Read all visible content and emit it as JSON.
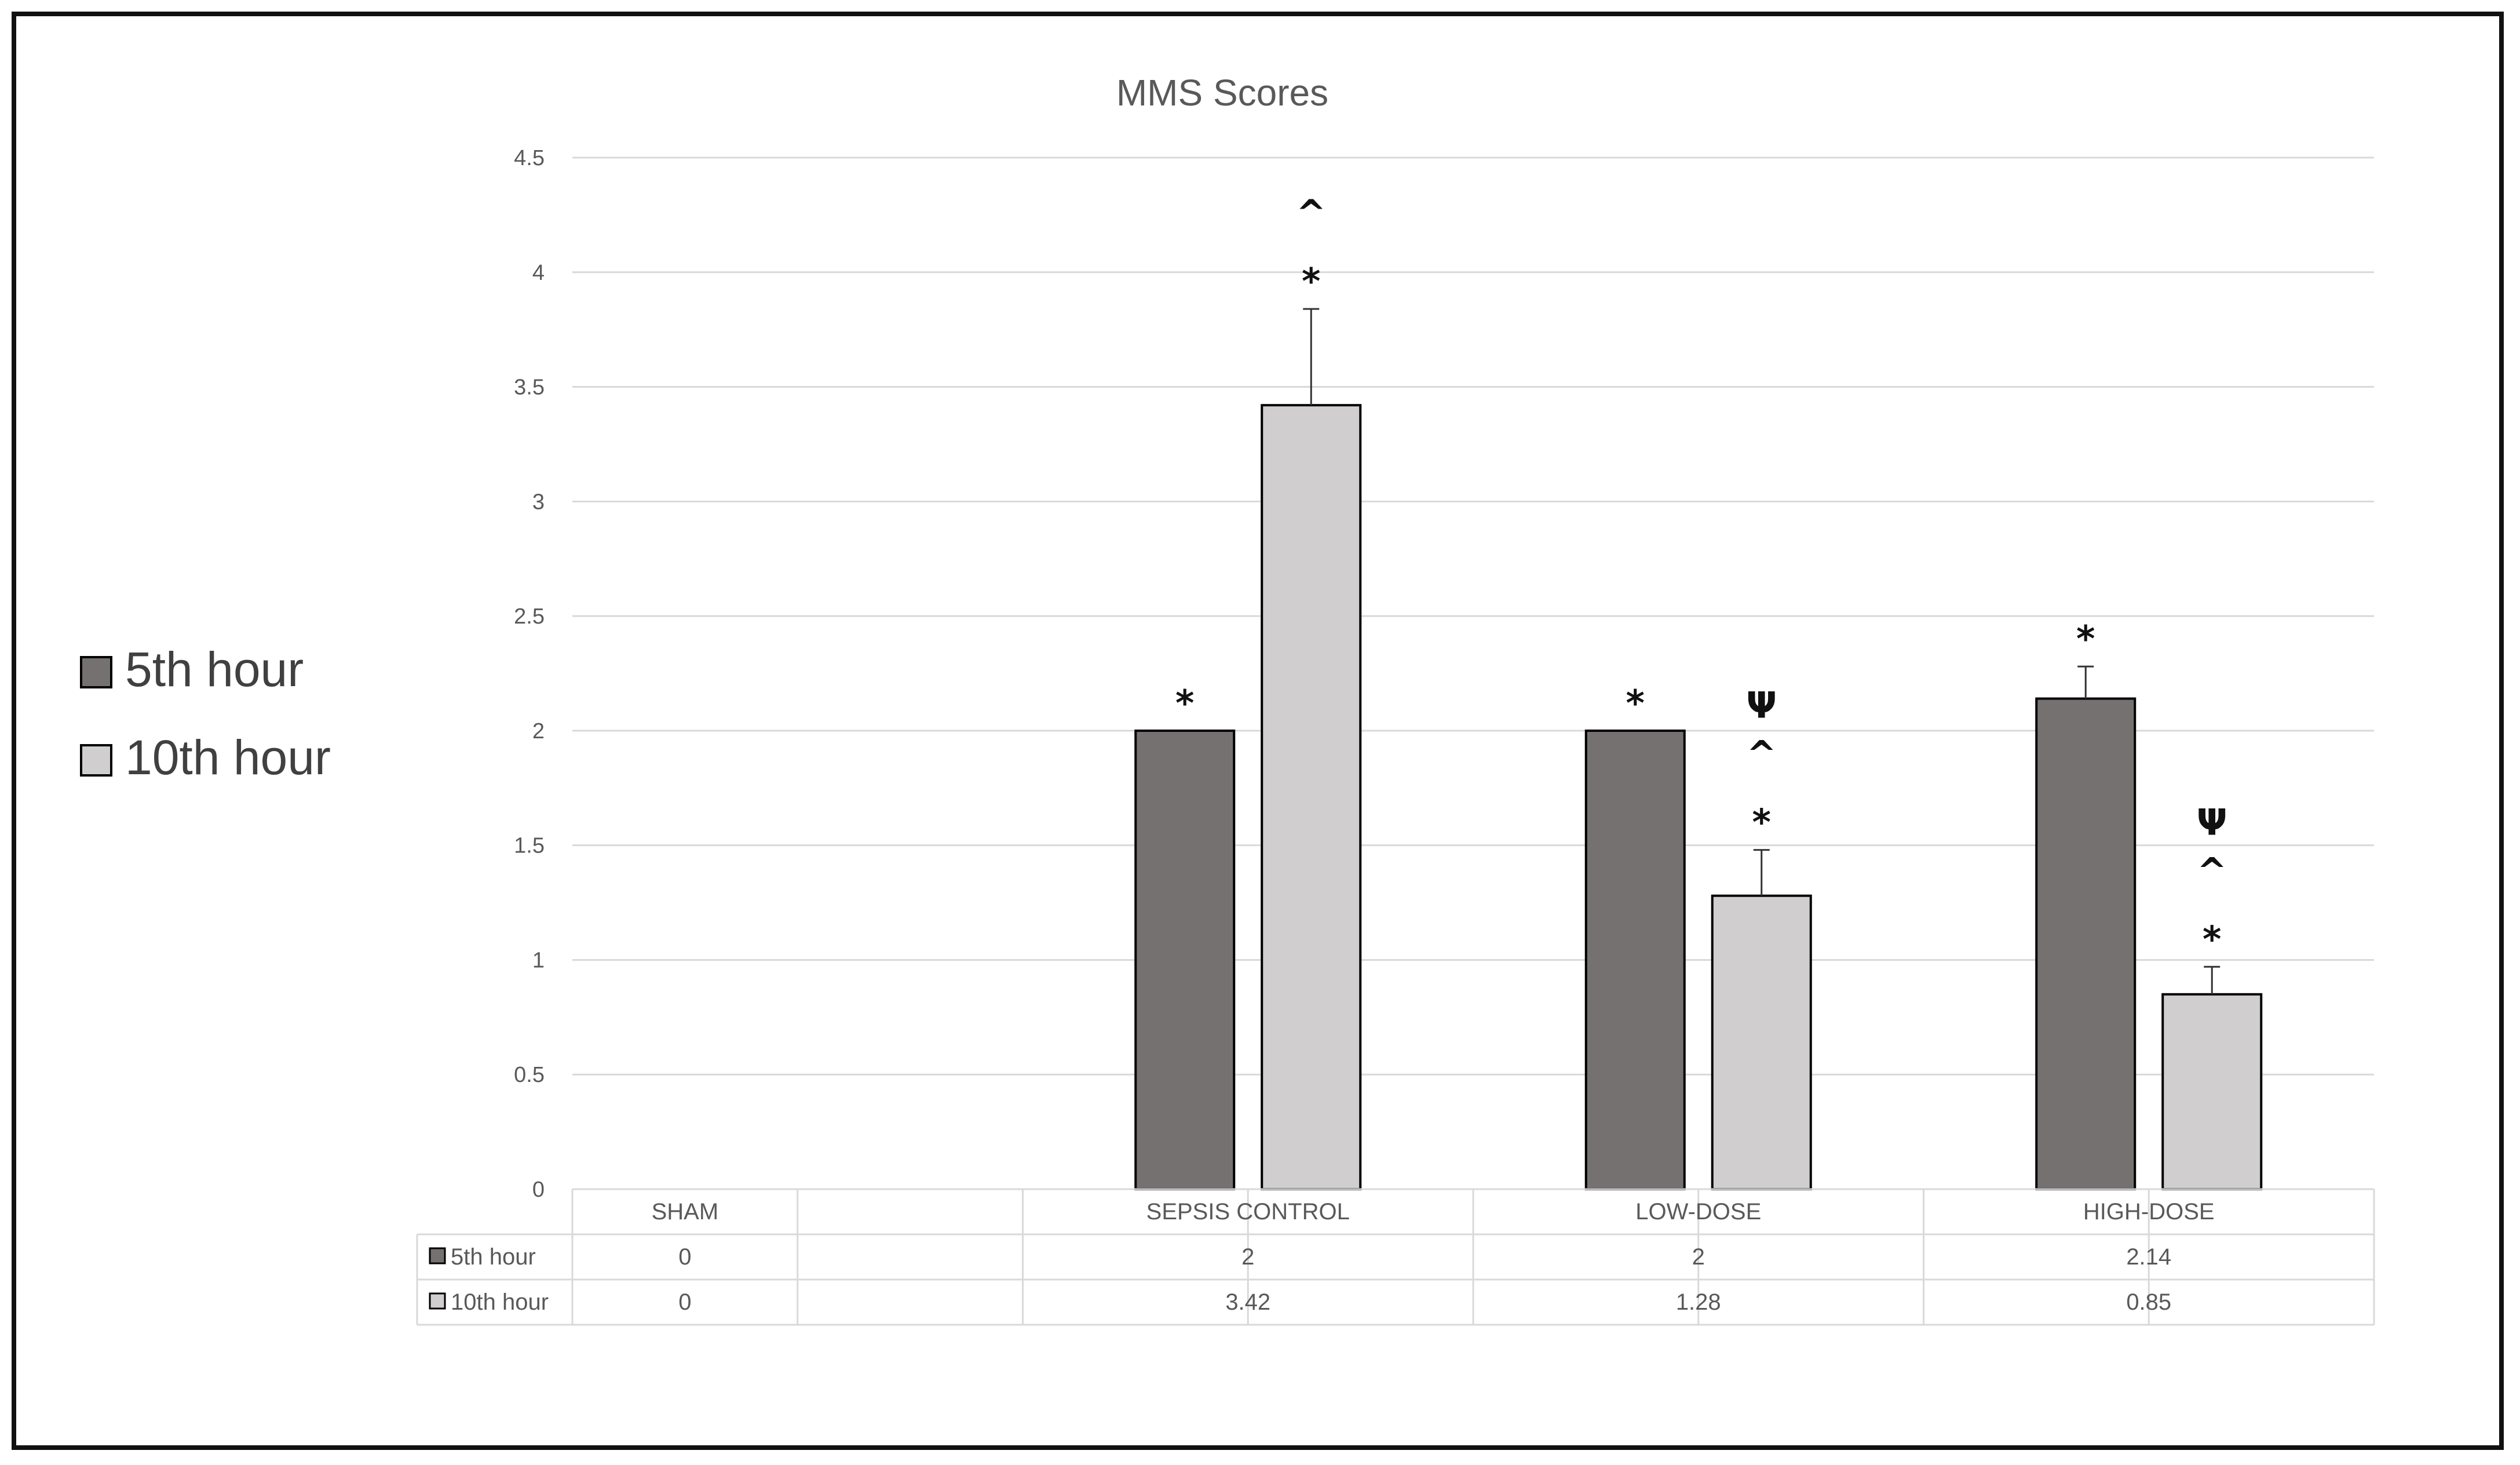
{
  "chart_data": {
    "type": "bar",
    "title": "MMS Scores",
    "categories": [
      "SHAM",
      "SEPSIS CONTROL",
      "LOW-DOSE",
      "HIGH-DOSE"
    ],
    "series": [
      {
        "name": "5th hour",
        "values": [
          0,
          2,
          2,
          2.14
        ],
        "errors": [
          0,
          0,
          0,
          0.14
        ],
        "color": "#757171"
      },
      {
        "name": "10th hour",
        "values": [
          0,
          3.42,
          1.28,
          0.85
        ],
        "errors": [
          0,
          0.42,
          0.2,
          0.12
        ],
        "color": "#d0cece"
      }
    ],
    "table_values": [
      [
        "0",
        "2",
        "2",
        "2.14"
      ],
      [
        "0",
        "3.42",
        "1.28",
        "0.85"
      ]
    ],
    "ylim": [
      0,
      4.5
    ],
    "yticks": [
      "0",
      "0.5",
      "1",
      "1.5",
      "2",
      "2.5",
      "3",
      "3.5",
      "4",
      "4.5"
    ],
    "grid": true,
    "legend_position": "left",
    "annotations": [
      {
        "category": 1,
        "series": 0,
        "marks": [
          "*"
        ]
      },
      {
        "category": 1,
        "series": 1,
        "marks": [
          "^",
          "*"
        ]
      },
      {
        "category": 2,
        "series": 0,
        "marks": [
          "*"
        ]
      },
      {
        "category": 2,
        "series": 1,
        "marks": [
          "Ψ",
          "^",
          "*"
        ]
      },
      {
        "category": 3,
        "series": 0,
        "marks": [
          "*"
        ]
      },
      {
        "category": 3,
        "series": 1,
        "marks": [
          "Ψ",
          "^",
          "*"
        ]
      }
    ],
    "xlabel": "",
    "ylabel": ""
  }
}
